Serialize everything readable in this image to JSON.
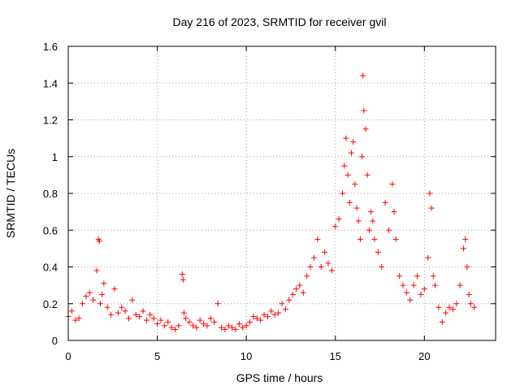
{
  "chart_data": {
    "type": "scatter",
    "title": "Day 216 of 2023, SRMTID for receiver gvil",
    "xlabel": "GPS time / hours",
    "ylabel": "SRMTID / TECUs",
    "xlim": [
      0,
      24
    ],
    "ylim": [
      0,
      1.6
    ],
    "xticks": [
      0,
      5,
      10,
      15,
      20
    ],
    "xtick_labels": [
      "0",
      "5",
      "10",
      "15",
      "20"
    ],
    "yticks": [
      0,
      0.2,
      0.4,
      0.6,
      0.8,
      1.0,
      1.2,
      1.4,
      1.6
    ],
    "ytick_labels": [
      "0",
      "0.2",
      "0.4",
      "0.6",
      "0.8",
      "1",
      "1.2",
      "1.4",
      "1.6"
    ],
    "grid": true,
    "marker": "+",
    "color": "#ff0000",
    "series": [
      {
        "name": "SRMTID",
        "x": [
          0.0,
          0.2,
          0.4,
          0.6,
          0.8,
          1.0,
          1.2,
          1.4,
          1.6,
          1.7,
          1.75,
          1.8,
          1.9,
          2.0,
          2.2,
          2.4,
          2.6,
          2.8,
          3.0,
          3.2,
          3.4,
          3.6,
          3.8,
          4.0,
          4.2,
          4.4,
          4.6,
          4.8,
          5.0,
          5.2,
          5.4,
          5.6,
          5.8,
          6.0,
          6.2,
          6.4,
          6.45,
          6.5,
          6.6,
          6.8,
          7.0,
          7.2,
          7.4,
          7.6,
          7.8,
          8.0,
          8.2,
          8.4,
          8.6,
          8.8,
          9.0,
          9.2,
          9.4,
          9.6,
          9.8,
          10.0,
          10.2,
          10.4,
          10.6,
          10.8,
          11.0,
          11.2,
          11.4,
          11.6,
          11.8,
          12.0,
          12.2,
          12.4,
          12.6,
          12.8,
          13.0,
          13.2,
          13.4,
          13.6,
          13.8,
          14.0,
          14.2,
          14.4,
          14.6,
          14.8,
          15.0,
          15.2,
          15.4,
          15.5,
          15.6,
          15.7,
          15.8,
          15.9,
          16.0,
          16.1,
          16.2,
          16.3,
          16.4,
          16.5,
          16.55,
          16.6,
          16.7,
          16.8,
          16.9,
          17.0,
          17.1,
          17.2,
          17.4,
          17.6,
          17.8,
          18.0,
          18.2,
          18.3,
          18.4,
          18.6,
          18.8,
          19.0,
          19.2,
          19.4,
          19.6,
          19.8,
          20.0,
          20.2,
          20.3,
          20.4,
          20.5,
          20.6,
          20.8,
          21.0,
          21.2,
          21.4,
          21.6,
          21.8,
          22.0,
          22.2,
          22.3,
          22.4,
          22.5,
          22.6,
          22.8
        ],
        "y": [
          0.13,
          0.16,
          0.11,
          0.12,
          0.2,
          0.24,
          0.26,
          0.22,
          0.38,
          0.55,
          0.54,
          0.2,
          0.25,
          0.31,
          0.18,
          0.14,
          0.28,
          0.15,
          0.18,
          0.16,
          0.12,
          0.22,
          0.14,
          0.13,
          0.16,
          0.11,
          0.14,
          0.12,
          0.09,
          0.11,
          0.08,
          0.1,
          0.07,
          0.06,
          0.08,
          0.36,
          0.33,
          0.15,
          0.12,
          0.1,
          0.08,
          0.07,
          0.11,
          0.09,
          0.08,
          0.12,
          0.1,
          0.2,
          0.07,
          0.06,
          0.08,
          0.07,
          0.06,
          0.09,
          0.07,
          0.08,
          0.1,
          0.13,
          0.12,
          0.11,
          0.14,
          0.13,
          0.16,
          0.14,
          0.15,
          0.2,
          0.17,
          0.22,
          0.25,
          0.28,
          0.3,
          0.26,
          0.35,
          0.4,
          0.45,
          0.55,
          0.4,
          0.48,
          0.42,
          0.38,
          0.62,
          0.66,
          0.8,
          0.95,
          1.1,
          0.9,
          0.75,
          1.02,
          1.08,
          0.85,
          0.72,
          0.65,
          0.55,
          1.0,
          1.44,
          1.25,
          1.15,
          0.9,
          0.6,
          0.7,
          0.65,
          0.55,
          0.48,
          0.4,
          0.75,
          0.6,
          0.85,
          0.7,
          0.55,
          0.35,
          0.3,
          0.26,
          0.22,
          0.3,
          0.35,
          0.25,
          0.28,
          0.45,
          0.8,
          0.72,
          0.35,
          0.3,
          0.18,
          0.1,
          0.15,
          0.18,
          0.17,
          0.2,
          0.3,
          0.5,
          0.55,
          0.4,
          0.25,
          0.2,
          0.18
        ]
      }
    ]
  }
}
